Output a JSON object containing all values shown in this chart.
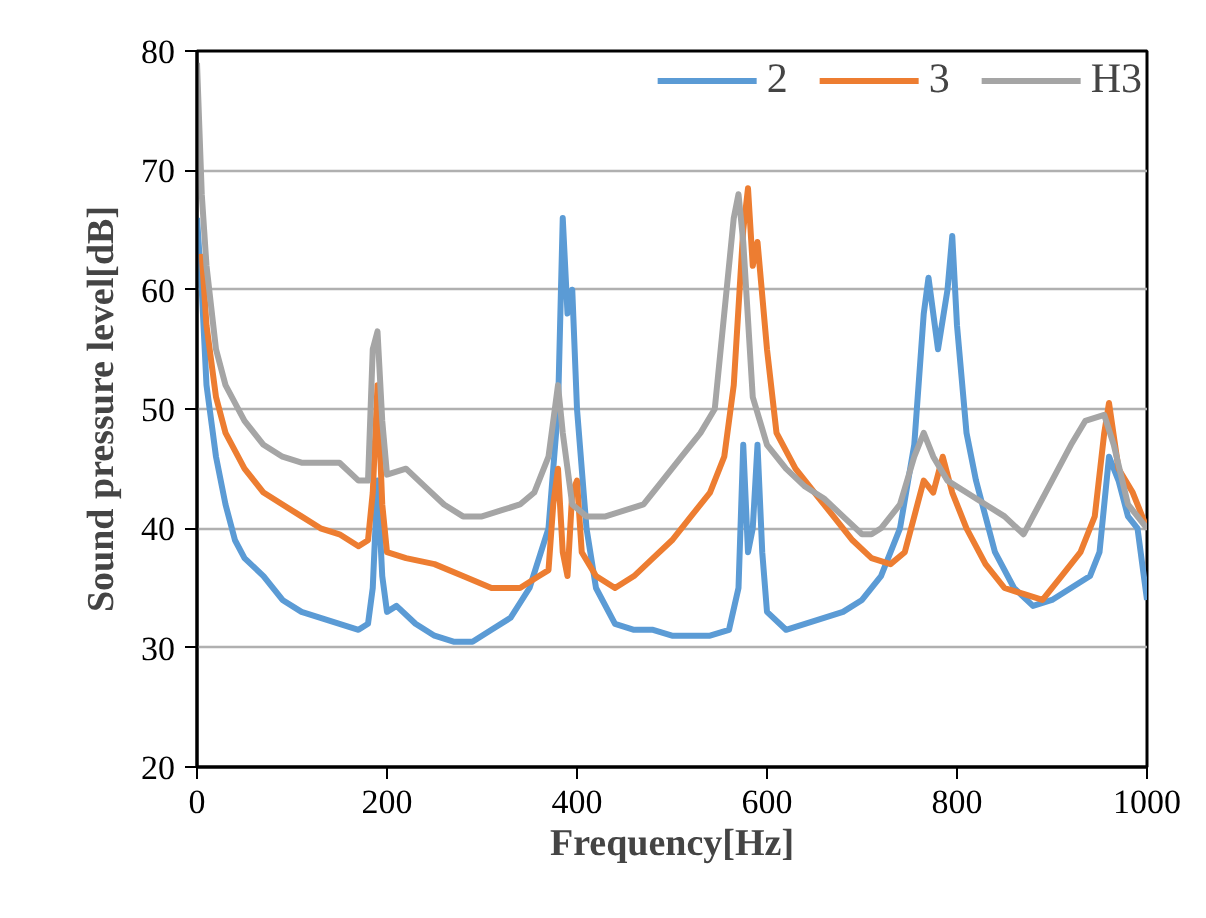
{
  "chart_data": {
    "type": "line",
    "xlabel": "Frequency[Hz]",
    "ylabel": "Sound pressure level[dB]",
    "xlim": [
      0,
      1000
    ],
    "xticks": [
      0,
      200,
      400,
      600,
      800,
      1000
    ],
    "ylim": [
      20,
      80
    ],
    "yticks": [
      20,
      30,
      40,
      50,
      60,
      70,
      80
    ],
    "grid": "y",
    "legend": "top right",
    "series": [
      {
        "name": "2",
        "color": "#5b9bd5",
        "x": [
          0,
          5,
          10,
          20,
          30,
          40,
          50,
          70,
          90,
          110,
          130,
          150,
          170,
          180,
          185,
          190,
          195,
          200,
          210,
          230,
          250,
          270,
          290,
          310,
          330,
          350,
          370,
          380,
          385,
          390,
          395,
          400,
          410,
          420,
          440,
          460,
          480,
          500,
          520,
          540,
          560,
          570,
          575,
          580,
          585,
          590,
          595,
          600,
          620,
          640,
          660,
          680,
          700,
          720,
          740,
          755,
          765,
          770,
          780,
          790,
          795,
          800,
          810,
          820,
          840,
          860,
          880,
          900,
          920,
          940,
          950,
          960,
          970,
          980,
          990,
          1000
        ],
        "values": [
          66,
          60,
          52,
          46,
          42,
          39,
          37.5,
          36,
          34,
          33,
          32.5,
          32,
          31.5,
          32,
          35,
          44,
          36,
          33,
          33.5,
          32,
          31,
          30.5,
          30.5,
          31.5,
          32.5,
          35,
          40,
          50,
          66,
          58,
          60,
          50,
          40,
          35,
          32,
          31.5,
          31.5,
          31,
          31,
          31,
          31.5,
          35,
          47,
          38,
          40,
          47,
          38,
          33,
          31.5,
          32,
          32.5,
          33,
          34,
          36,
          40,
          47,
          58,
          61,
          55,
          60,
          64.5,
          57,
          48,
          44,
          38,
          35,
          33.5,
          34,
          35,
          36,
          38,
          46,
          44,
          41,
          40,
          34
        ]
      },
      {
        "name": "3",
        "color": "#ed7d31",
        "x": [
          5,
          10,
          20,
          30,
          50,
          70,
          90,
          110,
          130,
          150,
          170,
          180,
          185,
          190,
          195,
          200,
          220,
          250,
          280,
          310,
          340,
          360,
          370,
          375,
          380,
          385,
          390,
          395,
          400,
          405,
          420,
          440,
          460,
          480,
          500,
          520,
          540,
          555,
          565,
          575,
          580,
          585,
          590,
          600,
          610,
          630,
          650,
          670,
          690,
          710,
          730,
          745,
          755,
          765,
          775,
          785,
          795,
          810,
          830,
          850,
          870,
          890,
          910,
          930,
          945,
          955,
          960,
          970,
          985,
          1000
        ],
        "values": [
          63,
          57,
          51,
          48,
          45,
          43,
          42,
          41,
          40,
          39.5,
          38.5,
          39,
          43,
          52,
          42,
          38,
          37.5,
          37,
          36,
          35,
          35,
          36,
          36.5,
          42,
          45,
          38,
          36,
          43,
          44,
          38,
          36,
          35,
          36,
          37.5,
          39,
          41,
          43,
          46,
          52,
          65,
          68.5,
          62,
          64,
          55,
          48,
          45,
          43,
          41,
          39,
          37.5,
          37,
          38,
          41,
          44,
          43,
          46,
          43,
          40,
          37,
          35,
          34.5,
          34,
          36,
          38,
          41,
          48,
          50.5,
          45,
          43,
          40
        ]
      },
      {
        "name": "H3",
        "color": "#a5a5a5",
        "x": [
          0,
          5,
          10,
          20,
          30,
          50,
          70,
          90,
          110,
          130,
          150,
          170,
          180,
          185,
          190,
          195,
          200,
          220,
          240,
          260,
          280,
          300,
          320,
          340,
          355,
          370,
          380,
          385,
          395,
          410,
          430,
          450,
          470,
          490,
          510,
          530,
          545,
          555,
          565,
          570,
          575,
          585,
          600,
          620,
          640,
          660,
          680,
          700,
          710,
          720,
          740,
          755,
          765,
          775,
          790,
          810,
          830,
          850,
          870,
          880,
          900,
          920,
          935,
          955,
          965,
          980,
          1000
        ],
        "values": [
          79,
          68,
          62,
          55,
          52,
          49,
          47,
          46,
          45.5,
          45.5,
          45.5,
          44,
          44,
          55,
          56.5,
          49,
          44.5,
          45,
          43.5,
          42,
          41,
          41,
          41.5,
          42,
          43,
          46,
          52,
          48,
          42,
          41,
          41,
          41.5,
          42,
          44,
          46,
          48,
          50,
          58,
          66,
          68,
          64,
          51,
          47,
          45,
          43.5,
          42.5,
          41,
          39.5,
          39.5,
          40,
          42,
          46,
          48,
          46,
          44,
          43,
          42,
          41,
          39.5,
          41,
          44,
          47,
          49,
          49.5,
          47,
          42,
          40
        ]
      }
    ]
  }
}
